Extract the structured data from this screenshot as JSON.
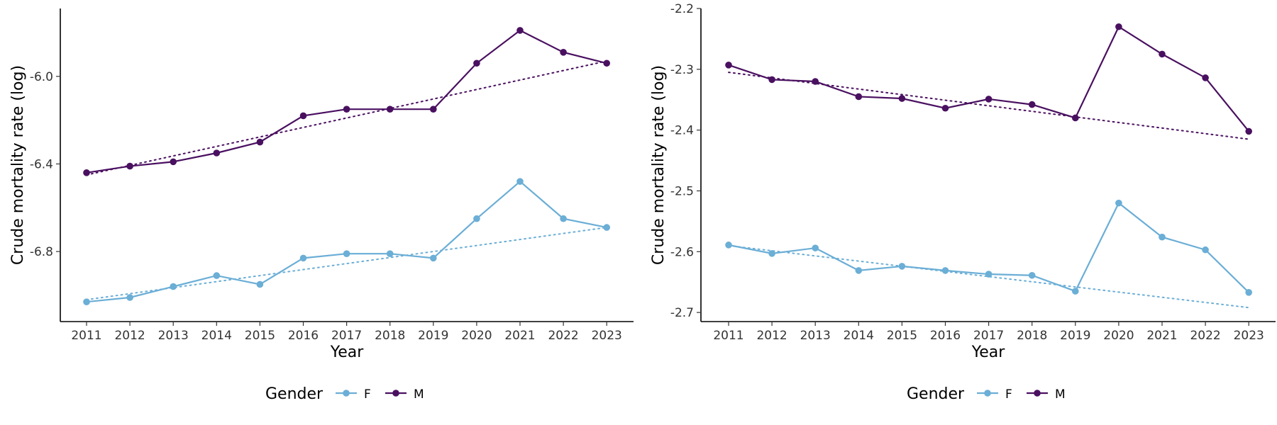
{
  "chart_data": [
    {
      "type": "line",
      "xlabel": "Year",
      "ylabel": "Crude mortality rate (log)",
      "x": [
        2011,
        2012,
        2013,
        2014,
        2015,
        2016,
        2017,
        2018,
        2019,
        2020,
        2021,
        2022,
        2023
      ],
      "x_ticks": [
        "2011",
        "2012",
        "2013",
        "2014",
        "2015",
        "2016",
        "2017",
        "2018",
        "2019",
        "2020",
        "2021",
        "2022",
        "2023"
      ],
      "y_ticks": [
        "-6.0",
        "-6.4",
        "-6.8"
      ],
      "y_tick_values": [
        -6.0,
        -6.4,
        -6.8
      ],
      "ylim": [
        -7.12,
        -5.69
      ],
      "grid": false,
      "series": [
        {
          "name": "F",
          "color": "#6baed6",
          "values": [
            -7.03,
            -7.01,
            -6.96,
            -6.91,
            -6.95,
            -6.83,
            -6.81,
            -6.81,
            -6.83,
            -6.65,
            -6.48,
            -6.65,
            -6.69
          ],
          "trend": [
            -7.02,
            -6.69
          ]
        },
        {
          "name": "M",
          "color": "#4a1060",
          "values": [
            -6.44,
            -6.41,
            -6.39,
            -6.35,
            -6.3,
            -6.18,
            -6.15,
            -6.15,
            -6.15,
            -5.94,
            -5.79,
            -5.89,
            -5.94
          ],
          "trend": [
            -6.45,
            -5.93
          ]
        }
      ]
    },
    {
      "type": "line",
      "xlabel": "Year",
      "ylabel": "Crude mortality rate (log)",
      "x": [
        2011,
        2012,
        2013,
        2014,
        2015,
        2016,
        2017,
        2018,
        2019,
        2020,
        2021,
        2022,
        2023
      ],
      "x_ticks": [
        "2011",
        "2012",
        "2013",
        "2014",
        "2015",
        "2016",
        "2017",
        "2018",
        "2019",
        "2020",
        "2021",
        "2022",
        "2023"
      ],
      "y_ticks": [
        "-2.2",
        "-2.3",
        "-2.4",
        "-2.5",
        "-2.6",
        "-2.7"
      ],
      "y_tick_values": [
        -2.2,
        -2.3,
        -2.4,
        -2.5,
        -2.6,
        -2.7
      ],
      "ylim": [
        -2.715,
        -2.2
      ],
      "grid": false,
      "series": [
        {
          "name": "F",
          "color": "#6baed6",
          "values": [
            -2.589,
            -2.603,
            -2.594,
            -2.631,
            -2.624,
            -2.631,
            -2.637,
            -2.639,
            -2.665,
            -2.52,
            -2.576,
            -2.597,
            -2.667
          ],
          "trend": [
            -2.59,
            -2.692
          ]
        },
        {
          "name": "M",
          "color": "#4a1060",
          "values": [
            -2.293,
            -2.317,
            -2.32,
            -2.345,
            -2.348,
            -2.364,
            -2.349,
            -2.358,
            -2.38,
            -2.23,
            -2.275,
            -2.314,
            -2.402
          ],
          "trend": [
            -2.305,
            -2.415
          ]
        }
      ]
    }
  ],
  "legends": [
    {
      "title": "Gender",
      "items": [
        {
          "label": "F",
          "color": "#6baed6"
        },
        {
          "label": "M",
          "color": "#4a1060"
        }
      ]
    },
    {
      "title": "Gender",
      "items": [
        {
          "label": "F",
          "color": "#6baed6"
        },
        {
          "label": "M",
          "color": "#4a1060"
        }
      ]
    }
  ]
}
